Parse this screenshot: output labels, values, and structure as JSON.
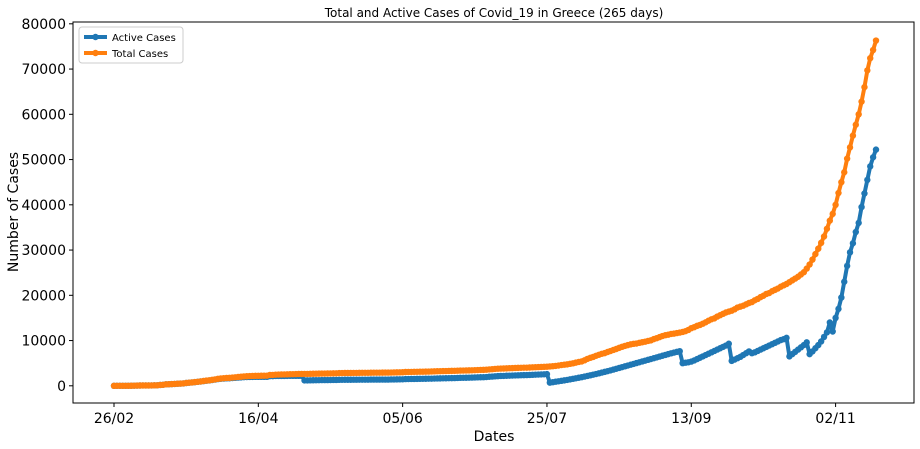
{
  "chart_data": {
    "type": "line",
    "title": "Total and Active Cases of Covid_19 in Greece (265 days)",
    "x_label": "Dates",
    "y_label": "Number of Cases",
    "categories": [
      "26/02",
      null,
      null,
      null,
      null,
      null,
      null,
      null,
      null,
      null,
      null,
      null,
      null,
      null,
      null,
      null,
      null,
      null,
      null,
      null,
      null,
      null,
      null,
      null,
      null,
      null,
      null,
      null,
      null,
      null,
      null,
      null,
      null,
      null,
      null,
      null,
      null,
      null,
      null,
      null,
      null,
      null,
      null,
      null,
      null,
      null,
      null,
      null,
      null,
      null,
      "16/04",
      null,
      null,
      null,
      null,
      null,
      null,
      null,
      null,
      null,
      null,
      null,
      null,
      null,
      null,
      null,
      null,
      null,
      null,
      null,
      null,
      null,
      null,
      null,
      null,
      null,
      null,
      null,
      null,
      null,
      null,
      null,
      null,
      null,
      null,
      null,
      null,
      null,
      null,
      null,
      null,
      null,
      null,
      null,
      null,
      null,
      null,
      null,
      null,
      null,
      "05/06",
      null,
      null,
      null,
      null,
      null,
      null,
      null,
      null,
      null,
      null,
      null,
      null,
      null,
      null,
      null,
      null,
      null,
      null,
      null,
      null,
      null,
      null,
      null,
      null,
      null,
      null,
      null,
      null,
      null,
      null,
      null,
      null,
      null,
      null,
      null,
      null,
      null,
      null,
      null,
      null,
      null,
      null,
      null,
      null,
      null,
      null,
      null,
      null,
      null,
      "25/07",
      null,
      null,
      null,
      null,
      null,
      null,
      null,
      null,
      null,
      null,
      null,
      null,
      null,
      null,
      null,
      null,
      null,
      null,
      null,
      null,
      null,
      null,
      null,
      null,
      null,
      null,
      null,
      null,
      null,
      null,
      null,
      null,
      null,
      null,
      null,
      null,
      null,
      null,
      null,
      null,
      null,
      null,
      null,
      null,
      null,
      null,
      null,
      null,
      null,
      "13/09",
      null,
      null,
      null,
      null,
      null,
      null,
      null,
      null,
      null,
      null,
      null,
      null,
      null,
      null,
      null,
      null,
      null,
      null,
      null,
      null,
      null,
      null,
      null,
      null,
      null,
      null,
      null,
      null,
      null,
      null,
      null,
      null,
      null,
      null,
      null,
      null,
      null,
      null,
      null,
      null,
      null,
      null,
      null,
      null,
      null,
      null,
      null,
      null,
      null,
      "02/11",
      null,
      null,
      null,
      null,
      null,
      null,
      null,
      null,
      null,
      null,
      null,
      null,
      null,
      null
    ],
    "series": [
      {
        "name": "Active Cases",
        "color": "#1f77b4",
        "values": [
          1,
          3,
          4,
          7,
          7,
          9,
          10,
          31,
          45,
          66,
          73,
          73,
          84,
          89,
          99,
          116,
          189,
          227,
          330,
          351,
          385,
          415,
          460,
          490,
          525,
          618,
          688,
          735,
          812,
          880,
          950,
          1040,
          1130,
          1180,
          1280,
          1370,
          1490,
          1550,
          1600,
          1650,
          1660,
          1720,
          1760,
          1820,
          1860,
          1920,
          1940,
          1960,
          1970,
          1980,
          1980,
          1990,
          1990,
          1990,
          2130,
          2130,
          2170,
          2180,
          2180,
          2180,
          2190,
          2200,
          2200,
          2200,
          2210,
          2210,
          1200,
          1200,
          1210,
          1230,
          1240,
          1250,
          1260,
          1260,
          1270,
          1280,
          1290,
          1290,
          1320,
          1330,
          1340,
          1340,
          1340,
          1350,
          1350,
          1360,
          1360,
          1360,
          1360,
          1370,
          1380,
          1380,
          1380,
          1380,
          1380,
          1380,
          1400,
          1410,
          1420,
          1430,
          1440,
          1490,
          1500,
          1510,
          1520,
          1530,
          1540,
          1550,
          1560,
          1570,
          1580,
          1610,
          1630,
          1640,
          1660,
          1670,
          1690,
          1700,
          1710,
          1740,
          1760,
          1770,
          1780,
          1800,
          1820,
          1840,
          1870,
          1890,
          1900,
          1940,
          2000,
          2040,
          2100,
          2140,
          2170,
          2190,
          2220,
          2240,
          2270,
          2300,
          2320,
          2340,
          2360,
          2370,
          2400,
          2430,
          2460,
          2490,
          2520,
          2550,
          2580,
          700,
          800,
          900,
          1000,
          1100,
          1200,
          1300,
          1420,
          1540,
          1660,
          1780,
          1900,
          2040,
          2180,
          2320,
          2460,
          2600,
          2760,
          2920,
          3080,
          3240,
          3400,
          3580,
          3760,
          3940,
          4120,
          4300,
          4480,
          4660,
          4840,
          5020,
          5200,
          5380,
          5560,
          5740,
          5920,
          6100,
          6280,
          6460,
          6640,
          6820,
          7000,
          7180,
          7340,
          7500,
          7650,
          5000,
          5100,
          5200,
          5350,
          5600,
          5900,
          6200,
          6500,
          6800,
          7100,
          7400,
          7700,
          8000,
          8300,
          8600,
          8900,
          9300,
          5500,
          5800,
          6100,
          6400,
          6800,
          7200,
          7600,
          7200,
          7400,
          7700,
          8000,
          8300,
          8600,
          8900,
          9200,
          9500,
          9800,
          10100,
          10300,
          10600,
          6500,
          7000,
          7500,
          8000,
          8500,
          9000,
          9600,
          7000,
          7600,
          8300,
          9000,
          9800,
          10800,
          11800,
          14000,
          12000,
          15000,
          17000,
          19500,
          23000,
          26500,
          29500,
          31500,
          34000,
          36000,
          39500,
          42500,
          45500,
          48500,
          50500,
          52200
        ]
      },
      {
        "name": "Total Cases",
        "color": "#ff7f0e",
        "values": [
          1,
          3,
          4,
          7,
          7,
          9,
          10,
          31,
          45,
          66,
          73,
          73,
          84,
          89,
          99,
          117,
          190,
          228,
          331,
          352,
          387,
          418,
          464,
          495,
          530,
          624,
          695,
          743,
          821,
          892,
          966,
          1061,
          1156,
          1212,
          1314,
          1415,
          1544,
          1613,
          1673,
          1735,
          1755,
          1832,
          1884,
          1955,
          2011,
          2081,
          2114,
          2145,
          2170,
          2192,
          2207,
          2224,
          2235,
          2245,
          2401,
          2408,
          2463,
          2490,
          2506,
          2517,
          2534,
          2566,
          2576,
          2591,
          2612,
          2620,
          2626,
          2632,
          2642,
          2663,
          2678,
          2691,
          2710,
          2716,
          2726,
          2744,
          2760,
          2770,
          2810,
          2819,
          2834,
          2836,
          2840,
          2850,
          2853,
          2873,
          2876,
          2878,
          2882,
          2892,
          2903,
          2906,
          2909,
          2915,
          2917,
          2918,
          2937,
          2952,
          2967,
          2980,
          2997,
          3049,
          3058,
          3068,
          3088,
          3102,
          3112,
          3121,
          3134,
          3148,
          3166,
          3203,
          3227,
          3237,
          3256,
          3266,
          3287,
          3302,
          3310,
          3343,
          3366,
          3376,
          3390,
          3409,
          3432,
          3458,
          3486,
          3511,
          3519,
          3562,
          3622,
          3672,
          3732,
          3772,
          3803,
          3826,
          3854,
          3883,
          3910,
          3939,
          3964,
          3983,
          4007,
          4012,
          4048,
          4077,
          4110,
          4135,
          4166,
          4193,
          4227,
          4279,
          4336,
          4401,
          4477,
          4587,
          4662,
          4737,
          4855,
          4973,
          5123,
          5270,
          5387,
          5623,
          5942,
          6177,
          6381,
          6632,
          6858,
          7075,
          7222,
          7472,
          7684,
          7922,
          8134,
          8381,
          8619,
          8819,
          8989,
          9158,
          9280,
          9344,
          9499,
          9627,
          9741,
          9905,
          10042,
          10317,
          10524,
          10757,
          10998,
          11181,
          11289,
          11454,
          11530,
          11655,
          11767,
          11902,
          12074,
          12347,
          12734,
          12952,
          13243,
          13452,
          13730,
          14041,
          14400,
          14700,
          14900,
          15300,
          15600,
          15900,
          16200,
          16400,
          16600,
          16900,
          17300,
          17500,
          17700,
          18000,
          18300,
          18500,
          18900,
          19200,
          19600,
          19900,
          20300,
          20500,
          20900,
          21200,
          21500,
          21900,
          22200,
          22500,
          22900,
          23300,
          23700,
          24100,
          24600,
          25100,
          25900,
          26800,
          27900,
          29100,
          30300,
          31600,
          33000,
          34700,
          36500,
          38000,
          40000,
          42600,
          45000,
          47200,
          50200,
          52700,
          55300,
          57700,
          60000,
          62800,
          66000,
          69700,
          72400,
          74200,
          76300
        ]
      }
    ],
    "ylim": [
      -3800,
      80400
    ],
    "yticks": [
      0,
      10000,
      20000,
      30000,
      40000,
      50000,
      60000,
      70000,
      80000
    ],
    "grid": false,
    "legend": "upper left"
  }
}
